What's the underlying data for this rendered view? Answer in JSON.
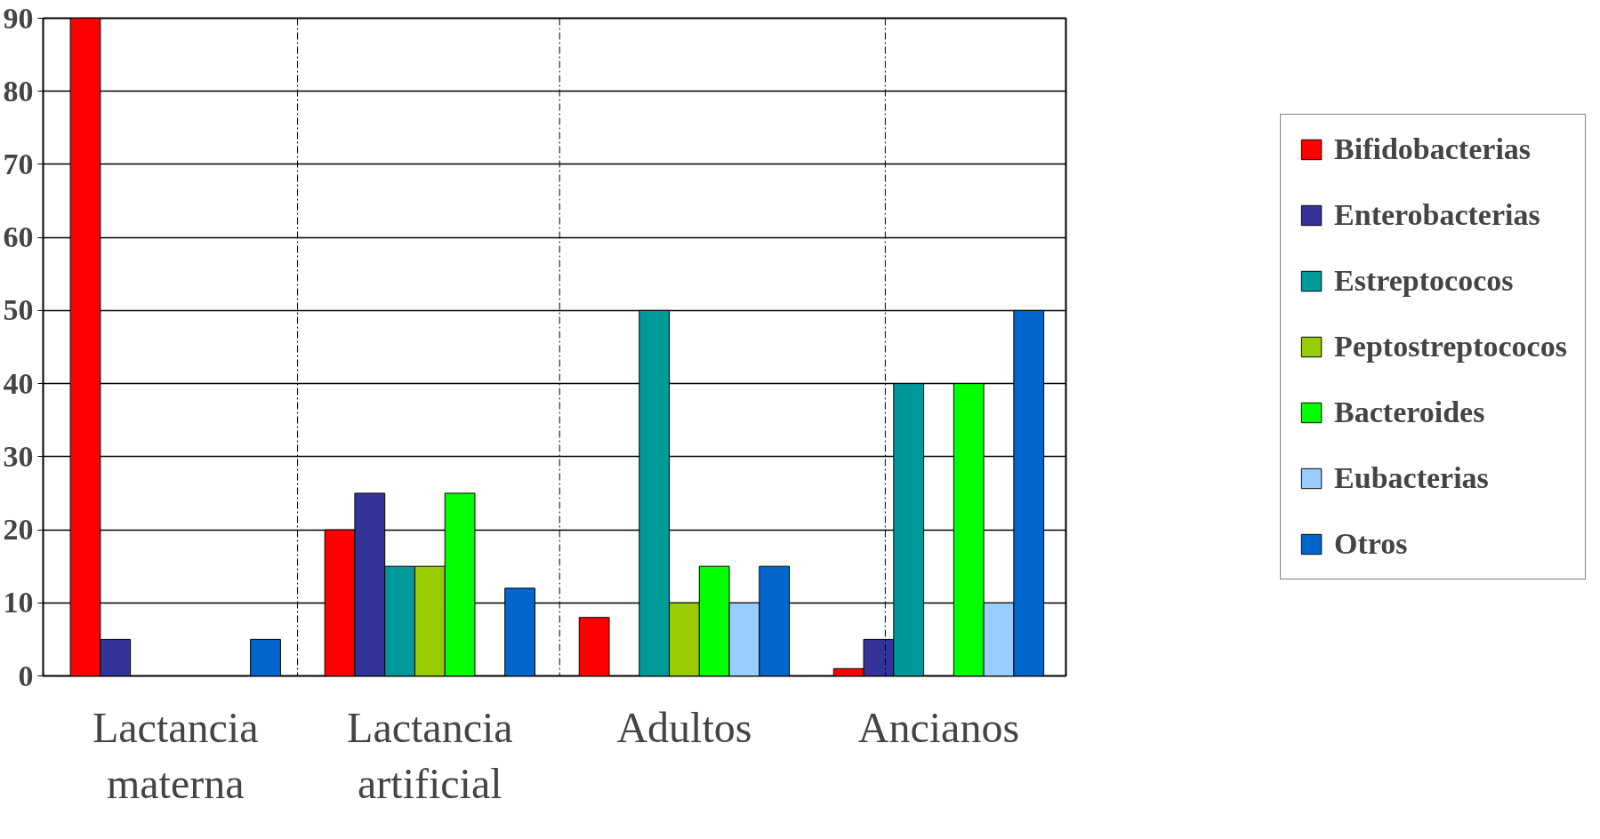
{
  "chart_data": {
    "type": "bar",
    "categories": [
      "Lactancia materna",
      "Lactancia artificial",
      "Adultos",
      "Ancianos"
    ],
    "series": [
      {
        "name": "Bifidobacterias",
        "color": "#ff0000",
        "values": [
          90,
          20,
          8,
          1
        ]
      },
      {
        "name": "Enterobacterias",
        "color": "#333399",
        "values": [
          5,
          25,
          null,
          5
        ]
      },
      {
        "name": "Estreptococos",
        "color": "#009999",
        "values": [
          null,
          15,
          50,
          40
        ]
      },
      {
        "name": "Peptostreptococos",
        "color": "#99cc00",
        "values": [
          null,
          15,
          10,
          null
        ]
      },
      {
        "name": "Bacteroides",
        "color": "#00ff00",
        "values": [
          null,
          25,
          15,
          40
        ]
      },
      {
        "name": "Eubacterias",
        "color": "#99ccff",
        "values": [
          null,
          null,
          10,
          10
        ]
      },
      {
        "name": "Otros",
        "color": "#0066cc",
        "values": [
          5,
          12,
          15,
          50
        ]
      }
    ],
    "ylim": [
      0,
      90
    ],
    "yticks": [
      0,
      10,
      20,
      30,
      40,
      50,
      60,
      70,
      80,
      90
    ],
    "grid": "y",
    "legend": "right"
  }
}
